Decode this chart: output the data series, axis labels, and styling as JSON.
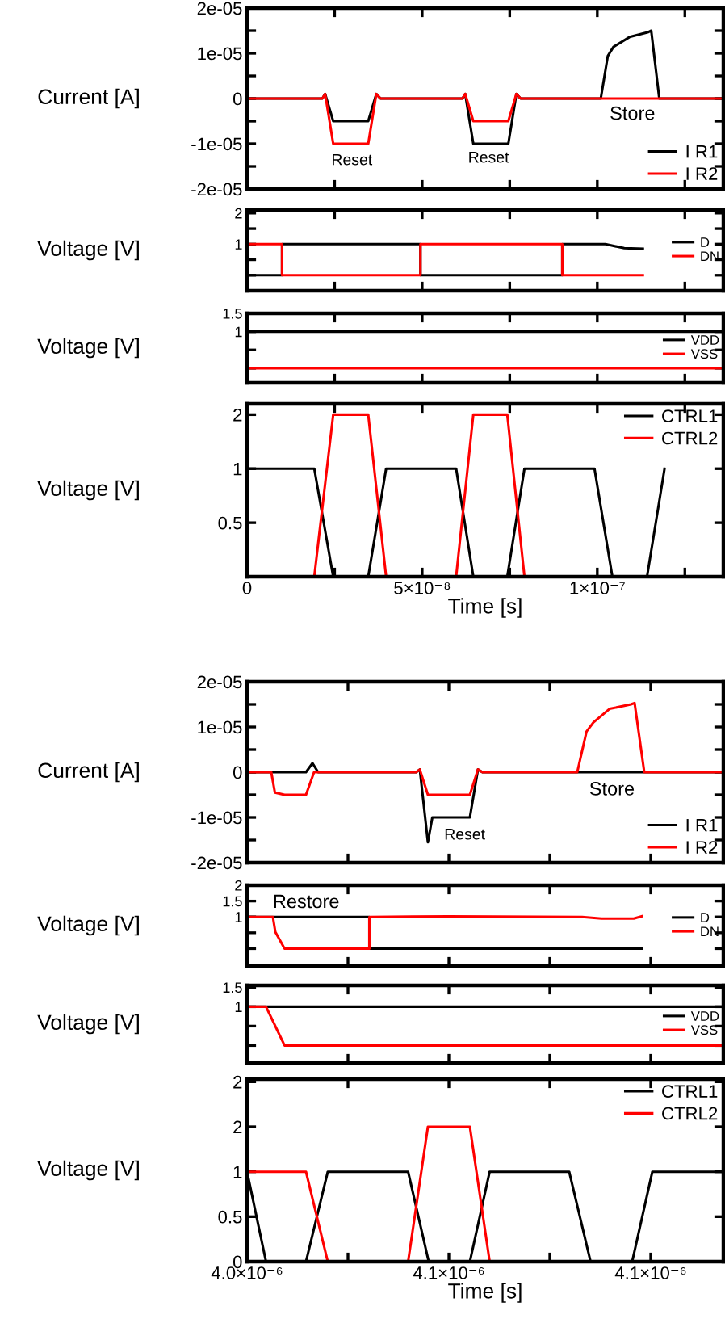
{
  "chart_data": [
    {
      "type": "line",
      "ylabel": "Current [A]",
      "xlim": [
        0,
        1.36e-07
      ],
      "ylim": [
        -2e-05,
        2e-05
      ],
      "xticks": [
        {
          "value": 0,
          "label": null
        },
        {
          "value": 2.5e-08,
          "label": null
        },
        {
          "value": 5e-08,
          "label": null
        },
        {
          "value": 7.5e-08,
          "label": null
        },
        {
          "value": 1e-07,
          "label": null
        },
        {
          "value": 1.25e-07,
          "label": null
        }
      ],
      "yticks": [
        {
          "value": -2e-05,
          "label": "-2e-05"
        },
        {
          "value": -1.5e-05,
          "label": null
        },
        {
          "value": -1e-05,
          "label": "-1e-05"
        },
        {
          "value": -5e-06,
          "label": null
        },
        {
          "value": 0,
          "label": "0"
        },
        {
          "value": 5e-06,
          "label": null
        },
        {
          "value": 1e-05,
          "label": "1e-05"
        },
        {
          "value": 1.5e-05,
          "label": null
        },
        {
          "value": 2e-05,
          "label": "2e-05"
        }
      ],
      "tick_labels": "y",
      "legend": "bottom right",
      "grid": false,
      "marker": "none",
      "line_style": "solid",
      "annotations": [
        "Reset",
        "Reset",
        "Store"
      ],
      "series": [
        {
          "name": "I R1",
          "color": "#000000",
          "x": [
            0,
            2.15e-08,
            2.23e-08,
            2.46e-08,
            3.46e-08,
            3.69e-08,
            3.81e-08,
            6.15e-08,
            6.23e-08,
            6.46e-08,
            7.46e-08,
            7.69e-08,
            7.81e-08,
            1.01e-07,
            1.03e-07,
            1.046e-07,
            1.092e-07,
            1.146e-07,
            1.154e-07,
            1.177e-07,
            1.36e-07
          ],
          "values": [
            0,
            0,
            1e-06,
            -5e-06,
            -5e-06,
            1e-06,
            0,
            0,
            1e-06,
            -1e-05,
            -1e-05,
            1e-06,
            0,
            0,
            9.4e-06,
            1.14e-05,
            1.36e-05,
            1.47e-05,
            1.5e-05,
            0,
            0
          ]
        },
        {
          "name": "I R2",
          "color": "#ff0000",
          "x": [
            0,
            2.15e-08,
            2.23e-08,
            2.46e-08,
            3.46e-08,
            3.69e-08,
            3.81e-08,
            6.15e-08,
            6.23e-08,
            6.46e-08,
            7.46e-08,
            7.69e-08,
            7.81e-08,
            1.36e-07
          ],
          "values": [
            0,
            0,
            1e-06,
            -1e-05,
            -1e-05,
            1e-06,
            0,
            0,
            1e-06,
            -5e-06,
            -5e-06,
            1e-06,
            0,
            0
          ]
        }
      ]
    },
    {
      "type": "line",
      "ylabel": "Voltage [V]",
      "xlim": [
        0,
        1.36e-07
      ],
      "ylim": [
        -0.5,
        2.1
      ],
      "xticks": [
        {
          "value": 0,
          "label": null
        },
        {
          "value": 2.5e-08,
          "label": null
        },
        {
          "value": 5e-08,
          "label": null
        },
        {
          "value": 7.5e-08,
          "label": null
        },
        {
          "value": 1e-07,
          "label": null
        },
        {
          "value": 1.25e-07,
          "label": null
        }
      ],
      "yticks": [
        {
          "value": 0,
          "label": null
        },
        {
          "value": 0.5,
          "label": null
        },
        {
          "value": 1,
          "label": "1"
        },
        {
          "value": 1.5,
          "label": null
        },
        {
          "value": 2,
          "label": "2"
        }
      ],
      "tick_labels": "y",
      "legend": "right",
      "grid": false,
      "marker": "none",
      "line_style": "solid",
      "series": [
        {
          "name": "D",
          "color": "#000000",
          "x": [
            0,
            1e-08,
            1e-08,
            4.95e-08,
            4.95e-08,
            9e-08,
            9e-08,
            1.023e-07,
            1.077e-07,
            1.13e-07
          ],
          "values": [
            0,
            0,
            1,
            1,
            0,
            0,
            1,
            1,
            0.87,
            0.85
          ]
        },
        {
          "name": "DN",
          "color": "#ff0000",
          "x": [
            0,
            1e-08,
            1e-08,
            4.95e-08,
            4.95e-08,
            9e-08,
            9e-08,
            1.13e-07
          ],
          "values": [
            1,
            1,
            0,
            0,
            1,
            1,
            0,
            0
          ]
        }
      ]
    },
    {
      "type": "line",
      "ylabel": "Voltage [V]",
      "xlim": [
        0,
        1.36e-07
      ],
      "ylim": [
        -0.4,
        1.5
      ],
      "xticks": [
        {
          "value": 0,
          "label": null
        },
        {
          "value": 2.5e-08,
          "label": null
        },
        {
          "value": 5e-08,
          "label": null
        },
        {
          "value": 7.5e-08,
          "label": null
        },
        {
          "value": 1e-07,
          "label": null
        },
        {
          "value": 1.25e-07,
          "label": null
        }
      ],
      "yticks": [
        {
          "value": 0,
          "label": null
        },
        {
          "value": 0.5,
          "label": null
        },
        {
          "value": 1,
          "label": "1"
        },
        {
          "value": 1.5,
          "label": "1.5"
        }
      ],
      "tick_labels": "y",
      "legend": "right",
      "grid": false,
      "marker": "none",
      "line_style": "solid",
      "series": [
        {
          "name": "VDD",
          "color": "#000000",
          "x": [
            0,
            1.36e-07
          ],
          "values": [
            1,
            1
          ]
        },
        {
          "name": "VSS",
          "color": "#ff0000",
          "x": [
            0,
            1.36e-07
          ],
          "values": [
            0,
            0
          ]
        }
      ]
    },
    {
      "type": "line",
      "ylabel": "Voltage [V]",
      "xlabel": "Time [s]",
      "xlim": [
        0,
        1.36e-07
      ],
      "ylim": [
        0,
        1.6
      ],
      "xticks": [
        {
          "value": 0,
          "label": "0"
        },
        {
          "value": 2.5e-08,
          "label": null
        },
        {
          "value": 5e-08,
          "label": "5×10⁻⁸"
        },
        {
          "value": 7.5e-08,
          "label": null
        },
        {
          "value": 1e-07,
          "label": "1×10⁻⁷"
        },
        {
          "value": 1.25e-07,
          "label": null
        }
      ],
      "yticks": [
        {
          "value": 0,
          "label": null
        },
        {
          "value": 0.5,
          "label": "0.5"
        },
        {
          "value": 1,
          "label": "1"
        },
        {
          "value": 1.5,
          "label": "2"
        }
      ],
      "legend": "top right",
      "grid": false,
      "marker": "none",
      "line_style": "solid",
      "series": [
        {
          "name": "CTRL1",
          "color": "#000000",
          "x": [
            0,
            1.92e-08,
            2.46e-08,
            3.46e-08,
            3.97e-08,
            5.97e-08,
            6.46e-08,
            7.43e-08,
            7.92e-08,
            9.92e-08,
            1.043e-07,
            1.142e-07,
            1.192e-07
          ],
          "values": [
            1,
            1,
            0,
            0,
            1,
            1,
            0,
            0,
            1,
            1,
            0,
            0,
            1
          ]
        },
        {
          "name": "CTRL2",
          "color": "#ff0000",
          "x": [
            0,
            1.92e-08,
            2.46e-08,
            3.46e-08,
            3.97e-08,
            5.97e-08,
            6.46e-08,
            7.43e-08,
            7.92e-08,
            1.36e-07
          ],
          "values": [
            0,
            0,
            1.5,
            1.5,
            0,
            0,
            1.5,
            1.5,
            0,
            0
          ]
        }
      ]
    },
    {
      "type": "line",
      "ylabel": "Current [A]",
      "xlim": [
        4e-06,
        4.118e-06
      ],
      "ylim": [
        -2e-05,
        2e-05
      ],
      "xticks": [
        {
          "value": 4e-06,
          "label": null
        },
        {
          "value": 4.025e-06,
          "label": null
        },
        {
          "value": 4.05e-06,
          "label": null
        },
        {
          "value": 4.075e-06,
          "label": null
        },
        {
          "value": 4.1e-06,
          "label": null
        }
      ],
      "yticks": [
        {
          "value": -2e-05,
          "label": "-2e-05"
        },
        {
          "value": -1.5e-05,
          "label": null
        },
        {
          "value": -1e-05,
          "label": "-1e-05"
        },
        {
          "value": -5e-06,
          "label": null
        },
        {
          "value": 0,
          "label": "0"
        },
        {
          "value": 5e-06,
          "label": null
        },
        {
          "value": 1e-05,
          "label": "1e-05"
        },
        {
          "value": 1.5e-05,
          "label": null
        },
        {
          "value": 2e-05,
          "label": "2e-05"
        }
      ],
      "tick_labels": "y",
      "legend": "bottom right",
      "grid": false,
      "marker": "none",
      "line_style": "solid",
      "annotations": [
        "Reset",
        "Store"
      ],
      "series": [
        {
          "name": "I R1",
          "color": "#000000",
          "x": [
            4e-06,
            4.0146e-06,
            4.0162e-06,
            4.0176e-06,
            4.0419e-06,
            4.0428e-06,
            4.0448e-06,
            4.0459e-06,
            4.0552e-06,
            4.0572e-06,
            4.0583e-06,
            4.118e-06
          ],
          "values": [
            0,
            0,
            2e-06,
            0,
            0,
            6e-07,
            -1.55e-05,
            -1e-05,
            -1e-05,
            6e-07,
            0,
            0
          ]
        },
        {
          "name": "I R2",
          "color": "#ff0000",
          "x": [
            4e-06,
            4.006e-06,
            4.0069e-06,
            4.0093e-06,
            4.0146e-06,
            4.0166e-06,
            4.0419e-06,
            4.0428e-06,
            4.0448e-06,
            4.0552e-06,
            4.0572e-06,
            4.0583e-06,
            4.0818e-06,
            4.0841e-06,
            4.0858e-06,
            4.0898e-06,
            4.0951e-06,
            4.096e-06,
            4.0984e-06,
            4.118e-06
          ],
          "values": [
            0,
            0,
            -4.5e-06,
            -5e-06,
            -5e-06,
            0,
            0,
            6e-07,
            -5e-06,
            -5e-06,
            6e-07,
            0,
            0,
            9e-06,
            1.1e-05,
            1.4e-05,
            1.5e-05,
            1.53e-05,
            0,
            0
          ]
        }
      ]
    },
    {
      "type": "line",
      "ylabel": "Voltage [V]",
      "xlim": [
        4e-06,
        4.118e-06
      ],
      "ylim": [
        -0.55,
        2.0
      ],
      "xticks": [
        {
          "value": 4e-06,
          "label": null
        },
        {
          "value": 4.025e-06,
          "label": null
        },
        {
          "value": 4.05e-06,
          "label": null
        },
        {
          "value": 4.075e-06,
          "label": null
        },
        {
          "value": 4.1e-06,
          "label": null
        }
      ],
      "yticks": [
        {
          "value": 0,
          "label": null
        },
        {
          "value": 0.5,
          "label": null
        },
        {
          "value": 1,
          "label": "1"
        },
        {
          "value": 1.5,
          "label": "1.5"
        },
        {
          "value": 2,
          "label": "2"
        }
      ],
      "tick_labels": "y",
      "legend": "right",
      "grid": false,
      "marker": "none",
      "line_style": "solid",
      "annotations": [
        "Restore"
      ],
      "series": [
        {
          "name": "D",
          "color": "#000000",
          "x": [
            4e-06,
            4.0303e-06,
            4.0303e-06,
            4.0978e-06
          ],
          "values": [
            1,
            1,
            0,
            0
          ]
        },
        {
          "name": "DN",
          "color": "#ff0000",
          "x": [
            4e-06,
            4.0064e-06,
            4.007e-06,
            4.0093e-06,
            4.0303e-06,
            4.0303e-06,
            4.05e-06,
            4.083e-06,
            4.0878e-06,
            4.0958e-06,
            4.0978e-06
          ],
          "values": [
            1,
            1,
            0.53,
            0,
            0,
            1,
            1.02,
            1,
            0.95,
            0.95,
            1.02
          ]
        }
      ]
    },
    {
      "type": "line",
      "ylabel": "Voltage [V]",
      "xlim": [
        4e-06,
        4.118e-06
      ],
      "ylim": [
        -0.45,
        1.55
      ],
      "xticks": [
        {
          "value": 4e-06,
          "label": null
        },
        {
          "value": 4.025e-06,
          "label": null
        },
        {
          "value": 4.05e-06,
          "label": null
        },
        {
          "value": 4.075e-06,
          "label": null
        },
        {
          "value": 4.1e-06,
          "label": null
        }
      ],
      "yticks": [
        {
          "value": 0,
          "label": null
        },
        {
          "value": 0.5,
          "label": null
        },
        {
          "value": 1,
          "label": "1"
        },
        {
          "value": 1.5,
          "label": "1.5"
        }
      ],
      "tick_labels": "y",
      "legend": "right",
      "grid": false,
      "marker": "none",
      "line_style": "solid",
      "series": [
        {
          "name": "VDD",
          "color": "#000000",
          "x": [
            4e-06,
            4.118e-06
          ],
          "values": [
            1,
            1
          ]
        },
        {
          "name": "VSS",
          "color": "#ff0000",
          "x": [
            4e-06,
            4.0047e-06,
            4.0093e-06,
            4.118e-06
          ],
          "values": [
            1,
            1,
            0,
            0
          ]
        }
      ]
    },
    {
      "type": "line",
      "ylabel": "Voltage [V]",
      "xlabel": "Time [s]",
      "xlim": [
        4e-06,
        4.118e-06
      ],
      "ylim": [
        0,
        2.03
      ],
      "xticks": [
        {
          "value": 4e-06,
          "label": "4.0×10⁻⁶"
        },
        {
          "value": 4.025e-06,
          "label": null
        },
        {
          "value": 4.05e-06,
          "label": "4.1×10⁻⁶"
        },
        {
          "value": 4.075e-06,
          "label": null
        },
        {
          "value": 4.1e-06,
          "label": "4.1×10⁻⁶"
        }
      ],
      "yticks": [
        {
          "value": 0,
          "label": "0"
        },
        {
          "value": 0.5,
          "label": "0.5"
        },
        {
          "value": 1,
          "label": "1"
        },
        {
          "value": 1.5,
          "label": "2"
        },
        {
          "value": 2,
          "label": "2"
        }
      ],
      "legend": "top right",
      "grid": false,
      "marker": "none",
      "line_style": "solid",
      "series": [
        {
          "name": "CTRL1",
          "color": "#000000",
          "x": [
            4e-06,
            4.0047e-06,
            4.0146e-06,
            4.02e-06,
            4.0399e-06,
            4.045e-06,
            4.0552e-06,
            4.0601e-06,
            4.0798e-06,
            4.0851e-06,
            4.0954e-06,
            4.1004e-06,
            4.118e-06
          ],
          "values": [
            1,
            0,
            0,
            1,
            1,
            0,
            0,
            1,
            1,
            0,
            0,
            1,
            1
          ]
        },
        {
          "name": "CTRL2",
          "color": "#ff0000",
          "x": [
            4e-06,
            4.0146e-06,
            4.02e-06,
            4.0399e-06,
            4.0448e-06,
            4.0552e-06,
            4.0601e-06,
            4.118e-06
          ],
          "values": [
            1,
            1,
            0,
            0,
            1.5,
            1.5,
            0,
            0
          ]
        }
      ]
    }
  ]
}
